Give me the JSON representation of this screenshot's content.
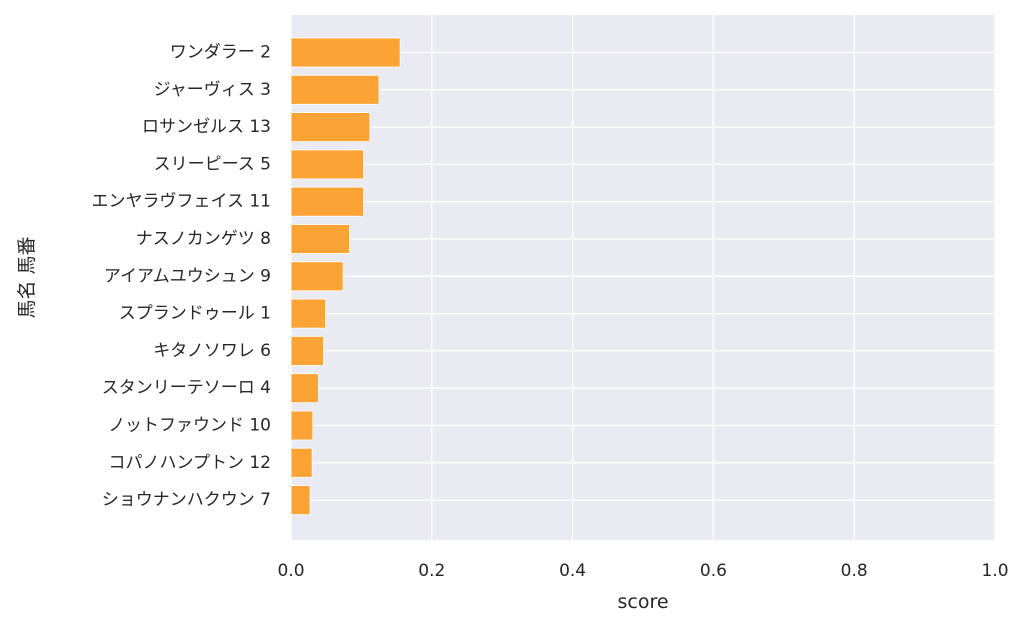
{
  "chart_data": {
    "type": "bar",
    "orientation": "horizontal",
    "title": "",
    "xlabel": "score",
    "ylabel": "馬名 馬番",
    "xlim": [
      0.0,
      1.0
    ],
    "xticks": [
      "0.0",
      "0.2",
      "0.4",
      "0.6",
      "0.8",
      "1.0"
    ],
    "grid": true,
    "categories": [
      "ワンダラー 2",
      "ジャーヴィス 3",
      "ロサンゼルス 13",
      "スリーピース 5",
      "エンヤラヴフェイス 11",
      "ナスノカンゲツ 8",
      "アイアムユウシュン 9",
      "スプランドゥール 1",
      "キタノソワレ 6",
      "スタンリーテソーロ 4",
      "ノットファウンド 10",
      "コパノハンプトン 12",
      "ショウナンハクウン 7"
    ],
    "values": [
      0.155,
      0.125,
      0.112,
      0.103,
      0.103,
      0.083,
      0.074,
      0.049,
      0.046,
      0.039,
      0.031,
      0.03,
      0.027
    ],
    "colors": {
      "bar": "#fca335",
      "plot_background": "#eaeaf2",
      "grid": "#ffffff",
      "text": "#262626"
    }
  }
}
